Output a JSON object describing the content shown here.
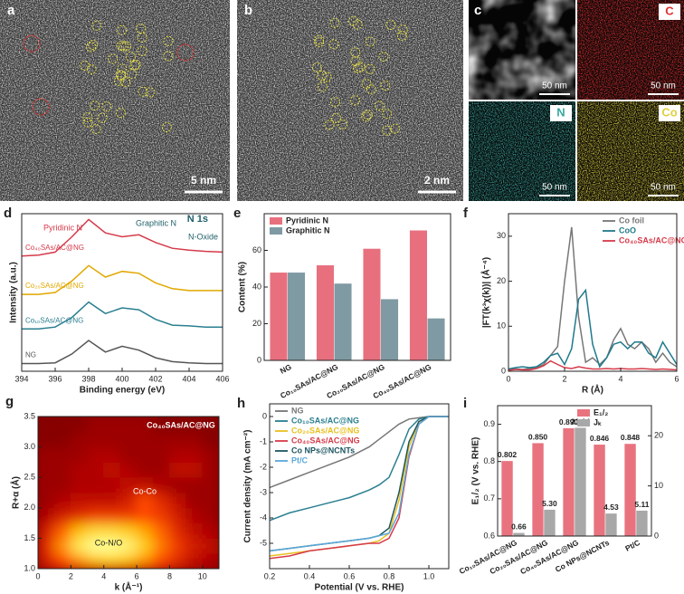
{
  "images": [
    {
      "label": "a",
      "scale_bar": "5 nm"
    },
    {
      "label": "b",
      "scale_bar": "2 nm"
    },
    {
      "label": "c",
      "maps": [
        {
          "scale_bar": "50 nm"
        },
        {
          "element": "C",
          "color": "#e03030",
          "scale_bar": "50 nm"
        },
        {
          "element": "N",
          "color": "#3aa8a0",
          "scale_bar": "50 nm"
        },
        {
          "element": "Co",
          "color": "#e0d040",
          "scale_bar": "50 nm"
        }
      ]
    }
  ],
  "chart_data": [
    {
      "type": "line",
      "label": "d",
      "xlabel": "Binding energy (eV)",
      "ylabel": "Intensity (a.u.)",
      "annotations": [
        "N 1s",
        "Pyridinic N",
        "Graphitic N",
        "N-Oxide"
      ],
      "x": [
        394,
        395,
        396,
        397,
        398,
        399,
        400,
        401,
        402,
        403,
        404,
        405,
        406
      ],
      "xlim": [
        394,
        406
      ],
      "xticks": [
        394,
        396,
        398,
        400,
        402,
        404,
        406
      ],
      "ylim": [
        0,
        4.1
      ],
      "legend": "inline",
      "series": [
        {
          "name": "Co₄₀SAs/AC@NG",
          "color": "#d63a4a",
          "values": [
            3.0,
            3.02,
            3.1,
            3.5,
            3.95,
            3.6,
            3.5,
            3.55,
            3.35,
            3.2,
            3.15,
            3.12,
            3.1
          ]
        },
        {
          "name": "Co₂₀SAs/AC@NG",
          "color": "#e0a800",
          "values": [
            2.0,
            2.0,
            2.05,
            2.35,
            2.75,
            2.45,
            2.6,
            2.55,
            2.3,
            2.15,
            2.1,
            2.1,
            2.1
          ]
        },
        {
          "name": "Co₁₀SAs/AC@NG",
          "color": "#2a7f8f",
          "values": [
            1.1,
            1.1,
            1.15,
            1.4,
            1.8,
            1.5,
            1.65,
            1.6,
            1.35,
            1.2,
            1.18,
            1.15,
            1.15
          ]
        },
        {
          "name": "NG",
          "color": "#555555",
          "values": [
            0.2,
            0.2,
            0.22,
            0.45,
            0.8,
            0.5,
            0.65,
            0.55,
            0.35,
            0.25,
            0.22,
            0.2,
            0.2
          ]
        }
      ]
    },
    {
      "type": "bar",
      "label": "e",
      "ylabel": "Content (%)",
      "legend": "upper left",
      "categories": [
        "NG",
        "Co₁₀SAs/AC@NG",
        "Co₂₀SAs/AC@NG",
        "Co₄₀SAs/AC@NG"
      ],
      "ylim": [
        0,
        80
      ],
      "yticks": [
        0,
        20,
        40,
        60
      ],
      "series": [
        {
          "name": "Pyridinic N",
          "color": "#e8707e",
          "values": [
            48,
            52,
            61,
            71
          ]
        },
        {
          "name": "Graphitic N",
          "color": "#7f9aa3",
          "values": [
            48,
            42,
            33.5,
            23
          ]
        }
      ]
    },
    {
      "type": "line",
      "label": "f",
      "xlabel": "R (Å)",
      "ylabel": "|FT(k³χ(k))| (Å⁻⁴)",
      "legend": "upper right",
      "x": [
        0,
        0.25,
        0.5,
        0.75,
        1,
        1.25,
        1.5,
        1.75,
        2,
        2.25,
        2.5,
        2.75,
        3,
        3.25,
        3.5,
        3.75,
        4,
        4.25,
        4.5,
        4.75,
        5,
        5.25,
        5.5,
        5.75,
        6
      ],
      "xlim": [
        0,
        6
      ],
      "xticks": [
        0,
        2,
        4,
        6
      ],
      "ylim": [
        0,
        35
      ],
      "yticks": [
        0,
        10,
        20,
        30
      ],
      "series": [
        {
          "name": "Co foil",
          "color": "#777777",
          "values": [
            0.3,
            0.5,
            0.4,
            0.6,
            0.8,
            1.5,
            3.5,
            5.5,
            20,
            32,
            12,
            2,
            3,
            1.5,
            3,
            7,
            9.5,
            6,
            5,
            6.5,
            5,
            2,
            4,
            2,
            1
          ]
        },
        {
          "name": "CoO",
          "color": "#1f7a8c",
          "values": [
            0.5,
            0.8,
            1,
            0.8,
            1,
            2,
            3.5,
            4,
            1.5,
            5,
            16,
            18,
            6,
            1,
            3,
            6,
            6.5,
            5,
            6.5,
            6.5,
            4,
            3,
            6.5,
            4,
            1.5
          ]
        },
        {
          "name": "Co₄₀SAs/AC@NG",
          "color": "#d63a4a",
          "values": [
            0.2,
            0.4,
            0.3,
            0.3,
            0.6,
            1.2,
            2.3,
            1.5,
            0.8,
            0.6,
            1,
            0.7,
            0.5,
            0.5,
            0.6,
            0.5,
            0.6,
            0.5,
            0.5,
            0.6,
            0.5,
            0.4,
            0.5,
            0.4,
            0.3
          ]
        }
      ]
    },
    {
      "type": "heatmap",
      "label": "g",
      "xlabel": "k (Å⁻¹)",
      "ylabel": "R+α (Å)",
      "annotations": [
        "Co₄₀SAs/AC@NG",
        "Co-Co",
        "Co-N/O"
      ],
      "xlim": [
        0,
        11
      ],
      "xticks": [
        0,
        2,
        4,
        6,
        8,
        10
      ],
      "ylim": [
        1,
        3.5
      ],
      "yticks": [
        {
          "value": 1,
          "label": "1.0"
        },
        1.5,
        {
          "value": 2,
          "label": "2.0"
        },
        2.5,
        {
          "value": 3,
          "label": "3.0"
        },
        3.5
      ],
      "colormap": [
        "#4a0000",
        "#b00000",
        "#ff4a00",
        "#ffc000",
        "#ffff90"
      ],
      "x": [
        0.5,
        1.5,
        2.5,
        3.5,
        4.5,
        5.5,
        6.5,
        7.5,
        8.5,
        9.5,
        10.5
      ],
      "y": [
        1.125,
        1.375,
        1.625,
        1.875,
        2.125,
        2.375,
        2.625,
        2.875,
        3.125,
        3.375
      ],
      "z": [
        [
          0.35,
          0.5,
          0.65,
          0.75,
          0.8,
          0.75,
          0.65,
          0.5,
          0.4,
          0.3,
          0.25
        ],
        [
          0.4,
          0.65,
          0.9,
          1.0,
          1.0,
          0.95,
          0.8,
          0.6,
          0.45,
          0.35,
          0.3
        ],
        [
          0.35,
          0.55,
          0.75,
          0.85,
          0.85,
          0.8,
          0.7,
          0.55,
          0.4,
          0.3,
          0.25
        ],
        [
          0.25,
          0.35,
          0.4,
          0.45,
          0.45,
          0.45,
          0.5,
          0.45,
          0.35,
          0.25,
          0.2
        ],
        [
          0.2,
          0.25,
          0.3,
          0.3,
          0.3,
          0.35,
          0.5,
          0.4,
          0.3,
          0.2,
          0.2
        ],
        [
          0.2,
          0.2,
          0.25,
          0.25,
          0.25,
          0.3,
          0.3,
          0.25,
          0.2,
          0.2,
          0.2
        ],
        [
          0.2,
          0.2,
          0.25,
          0.25,
          0.3,
          0.25,
          0.2,
          0.2,
          0.3,
          0.3,
          0.2
        ],
        [
          0.2,
          0.2,
          0.2,
          0.25,
          0.25,
          0.2,
          0.2,
          0.2,
          0.25,
          0.25,
          0.2
        ],
        [
          0.15,
          0.15,
          0.2,
          0.2,
          0.2,
          0.2,
          0.2,
          0.2,
          0.2,
          0.2,
          0.15
        ],
        [
          0.15,
          0.15,
          0.15,
          0.2,
          0.2,
          0.2,
          0.2,
          0.15,
          0.15,
          0.15,
          0.15
        ]
      ]
    },
    {
      "type": "line",
      "label": "h",
      "xlabel": "Potential (V vs. RHE)",
      "ylabel": "Current density (mA cm⁻²)",
      "legend": "upper left",
      "x": [
        0.2,
        0.3,
        0.4,
        0.5,
        0.6,
        0.7,
        0.75,
        0.8,
        0.85,
        0.9,
        0.95,
        1.0,
        1.05,
        1.1
      ],
      "xlim": [
        0.2,
        1.1
      ],
      "xticks": [
        0.2,
        0.4,
        0.6,
        0.8,
        {
          "value": 1,
          "label": "1.0"
        }
      ],
      "ylim": [
        -6,
        0.5
      ],
      "yticks": [
        -5,
        -4,
        -3,
        -2,
        -1,
        0
      ],
      "series": [
        {
          "name": "NG",
          "color": "#777777",
          "values": [
            -2.8,
            -2.5,
            -2.2,
            -1.9,
            -1.6,
            -1.2,
            -0.9,
            -0.6,
            -0.3,
            -0.1,
            -0.05,
            0,
            0,
            0
          ]
        },
        {
          "name": "Co₁₀SAs/AC@NG",
          "color": "#2a7f8f",
          "values": [
            -4.1,
            -3.8,
            -3.6,
            -3.4,
            -3.2,
            -2.9,
            -2.7,
            -2.4,
            -1.5,
            -0.5,
            -0.1,
            0,
            0,
            0
          ]
        },
        {
          "name": "Co₂₀SAs/AC@NG",
          "color": "#e8c020",
          "values": [
            -5.5,
            -5.4,
            -5.3,
            -5.2,
            -5.1,
            -5.0,
            -4.9,
            -4.6,
            -3.3,
            -1.2,
            -0.2,
            0,
            0,
            0
          ]
        },
        {
          "name": "Co₄₀SAs/AC@NG",
          "color": "#d63a4a",
          "values": [
            -5.6,
            -5.5,
            -5.3,
            -5.2,
            -5.1,
            -5.0,
            -5.0,
            -4.8,
            -4.0,
            -1.6,
            -0.3,
            0,
            0,
            0
          ]
        },
        {
          "name": "Co NPs@NCNTs",
          "color": "#1d5560",
          "values": [
            -5.3,
            -5.2,
            -5.1,
            -5.0,
            -4.9,
            -4.8,
            -4.7,
            -4.4,
            -3.0,
            -1.0,
            -0.2,
            0,
            0,
            0
          ]
        },
        {
          "name": "Pt/C",
          "color": "#5aa8d8",
          "values": [
            -5.3,
            -5.2,
            -5.1,
            -5.0,
            -4.9,
            -4.8,
            -4.7,
            -4.6,
            -3.8,
            -1.5,
            -0.3,
            0,
            0,
            0
          ]
        }
      ]
    },
    {
      "type": "bar",
      "label": "i",
      "ylabel": "E₁/₂ (V vs. RHE)",
      "legend": "upper right",
      "categories": [
        "Co₁₀SAs/AC@NG",
        "Co₂₀SAs/AC@NG",
        "Co₄₀SAs/AC@NG",
        "Co NPs@NCNTs",
        "Pt/C"
      ],
      "ylim": [
        0.6,
        0.95
      ],
      "yticks": [
        0.6,
        0.7,
        0.8,
        0.9
      ],
      "y2lim": [
        0,
        26
      ],
      "y2ticks": [
        0,
        10,
        20
      ],
      "series": [
        {
          "name": "E₁/₂",
          "color": "#e8737f",
          "values": [
            0.802,
            0.85,
            0.89,
            0.846,
            0.848
          ],
          "value_labels": [
            "0.802",
            "0.850",
            "0.890",
            "0.846",
            "0.848"
          ]
        },
        {
          "name": "Jₖ",
          "color": "#a8a8a8",
          "axis": "y2",
          "values": [
            0.66,
            5.3,
            21.64,
            4.53,
            5.11
          ],
          "value_labels": [
            "0.66",
            "5.30",
            "21.64",
            "4.53",
            "5.11"
          ]
        }
      ]
    }
  ]
}
